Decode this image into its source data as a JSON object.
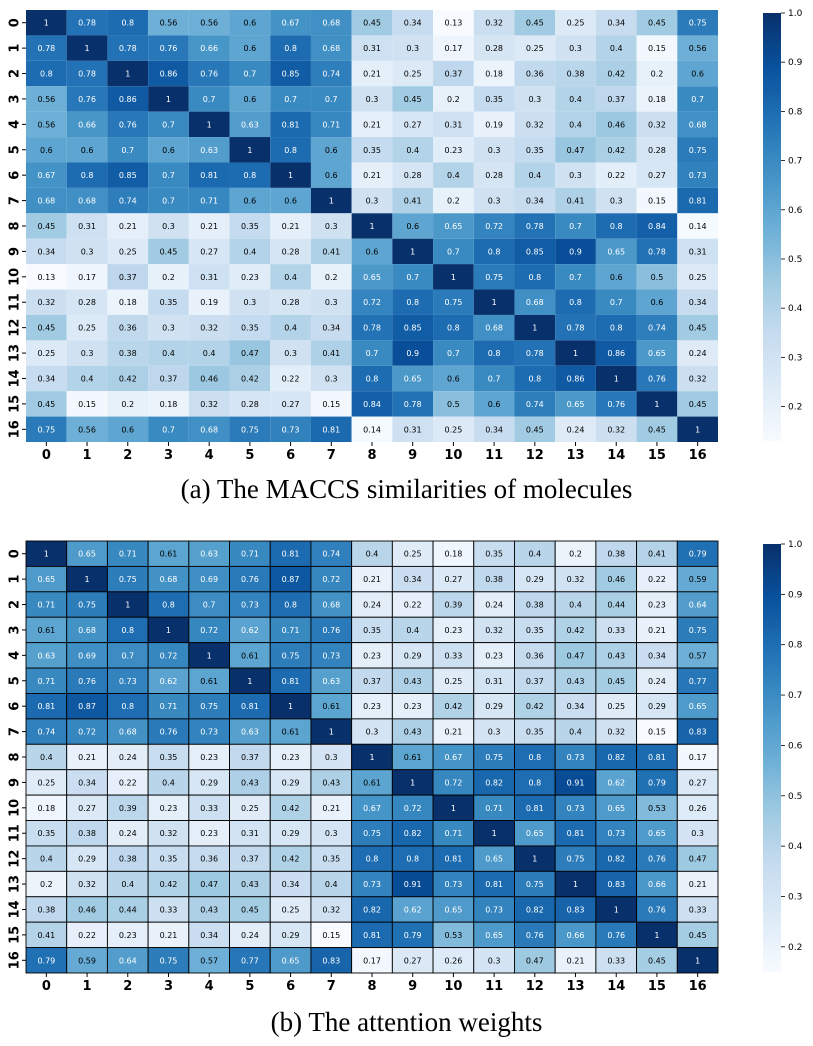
{
  "figure": {
    "caption_a": "(a) The MACCS similarities of molecules",
    "caption_b": "(b) The attention weights"
  },
  "colors": {
    "colormap_low": "#f7fbff",
    "colormap_high": "#08306b",
    "cell_text_dark": "#000000",
    "cell_text_light": "#ffffff",
    "gridline_b": "#000000"
  },
  "chart_data": [
    {
      "type": "heatmap",
      "title": "(a) The MACCS similarities of molecules",
      "row_labels": [
        "0",
        "1",
        "2",
        "3",
        "4",
        "5",
        "6",
        "7",
        "8",
        "9",
        "10",
        "11",
        "12",
        "13",
        "14",
        "15",
        "16"
      ],
      "col_labels": [
        "0",
        "1",
        "2",
        "3",
        "4",
        "5",
        "6",
        "7",
        "8",
        "9",
        "10",
        "11",
        "12",
        "13",
        "14",
        "15",
        "16"
      ],
      "colorbar": {
        "min": 0.13,
        "max": 1.0,
        "ticks": [
          "1.0",
          "0.9",
          "0.8",
          "0.7",
          "0.6",
          "0.5",
          "0.4",
          "0.3",
          "0.2"
        ],
        "tick_values": [
          1.0,
          0.9,
          0.8,
          0.7,
          0.6,
          0.5,
          0.4,
          0.3,
          0.2
        ]
      },
      "gridlines": false,
      "values": [
        [
          1,
          0.78,
          0.8,
          0.56,
          0.56,
          0.6,
          0.67,
          0.68,
          0.45,
          0.34,
          0.13,
          0.32,
          0.45,
          0.25,
          0.34,
          0.45,
          0.75
        ],
        [
          0.78,
          1,
          0.78,
          0.76,
          0.66,
          0.6,
          0.8,
          0.68,
          0.31,
          0.3,
          0.17,
          0.28,
          0.25,
          0.3,
          0.4,
          0.15,
          0.56
        ],
        [
          0.8,
          0.78,
          1,
          0.86,
          0.76,
          0.7,
          0.85,
          0.74,
          0.21,
          0.25,
          0.37,
          0.18,
          0.36,
          0.38,
          0.42,
          0.2,
          0.6
        ],
        [
          0.56,
          0.76,
          0.86,
          1,
          0.7,
          0.6,
          0.7,
          0.7,
          0.3,
          0.45,
          0.2,
          0.35,
          0.3,
          0.4,
          0.37,
          0.18,
          0.7
        ],
        [
          0.56,
          0.66,
          0.76,
          0.7,
          1,
          0.63,
          0.81,
          0.71,
          0.21,
          0.27,
          0.31,
          0.19,
          0.32,
          0.4,
          0.46,
          0.32,
          0.68
        ],
        [
          0.6,
          0.6,
          0.7,
          0.6,
          0.63,
          1,
          0.8,
          0.6,
          0.35,
          0.4,
          0.23,
          0.3,
          0.35,
          0.47,
          0.42,
          0.28,
          0.75
        ],
        [
          0.67,
          0.8,
          0.85,
          0.7,
          0.81,
          0.8,
          1,
          0.6,
          0.21,
          0.28,
          0.4,
          0.28,
          0.4,
          0.3,
          0.22,
          0.27,
          0.73
        ],
        [
          0.68,
          0.68,
          0.74,
          0.7,
          0.71,
          0.6,
          0.6,
          1,
          0.3,
          0.41,
          0.2,
          0.3,
          0.34,
          0.41,
          0.3,
          0.15,
          0.81
        ],
        [
          0.45,
          0.31,
          0.21,
          0.3,
          0.21,
          0.35,
          0.21,
          0.3,
          1,
          0.6,
          0.65,
          0.72,
          0.78,
          0.7,
          0.8,
          0.84,
          0.14
        ],
        [
          0.34,
          0.3,
          0.25,
          0.45,
          0.27,
          0.4,
          0.28,
          0.41,
          0.6,
          1,
          0.7,
          0.8,
          0.85,
          0.9,
          0.65,
          0.78,
          0.31
        ],
        [
          0.13,
          0.17,
          0.37,
          0.2,
          0.31,
          0.23,
          0.4,
          0.2,
          0.65,
          0.7,
          1,
          0.75,
          0.8,
          0.7,
          0.6,
          0.5,
          0.25
        ],
        [
          0.32,
          0.28,
          0.18,
          0.35,
          0.19,
          0.3,
          0.28,
          0.3,
          0.72,
          0.8,
          0.75,
          1,
          0.68,
          0.8,
          0.7,
          0.6,
          0.34
        ],
        [
          0.45,
          0.25,
          0.36,
          0.3,
          0.32,
          0.35,
          0.4,
          0.34,
          0.78,
          0.85,
          0.8,
          0.68,
          1,
          0.78,
          0.8,
          0.74,
          0.45
        ],
        [
          0.25,
          0.3,
          0.38,
          0.4,
          0.4,
          0.47,
          0.3,
          0.41,
          0.7,
          0.9,
          0.7,
          0.8,
          0.78,
          1,
          0.86,
          0.65,
          0.24
        ],
        [
          0.34,
          0.4,
          0.42,
          0.37,
          0.46,
          0.42,
          0.22,
          0.3,
          0.8,
          0.65,
          0.6,
          0.7,
          0.8,
          0.86,
          1,
          0.76,
          0.32
        ],
        [
          0.45,
          0.15,
          0.2,
          0.18,
          0.32,
          0.28,
          0.27,
          0.15,
          0.84,
          0.78,
          0.5,
          0.6,
          0.74,
          0.65,
          0.76,
          1,
          0.45
        ],
        [
          0.75,
          0.56,
          0.6,
          0.7,
          0.68,
          0.75,
          0.73,
          0.81,
          0.14,
          0.31,
          0.25,
          0.34,
          0.45,
          0.24,
          0.32,
          0.45,
          1
        ]
      ]
    },
    {
      "type": "heatmap",
      "title": "(b) The attention weights",
      "row_labels": [
        "0",
        "1",
        "2",
        "3",
        "4",
        "5",
        "6",
        "7",
        "8",
        "9",
        "10",
        "11",
        "12",
        "13",
        "14",
        "15",
        "16"
      ],
      "col_labels": [
        "0",
        "1",
        "2",
        "3",
        "4",
        "5",
        "6",
        "7",
        "8",
        "9",
        "10",
        "11",
        "12",
        "13",
        "14",
        "15",
        "16"
      ],
      "colorbar": {
        "min": 0.15,
        "max": 1.0,
        "ticks": [
          "1.0",
          "0.9",
          "0.8",
          "0.7",
          "0.6",
          "0.5",
          "0.4",
          "0.3",
          "0.2"
        ],
        "tick_values": [
          1.0,
          0.9,
          0.8,
          0.7,
          0.6,
          0.5,
          0.4,
          0.3,
          0.2
        ]
      },
      "gridlines": true,
      "values": [
        [
          1,
          0.65,
          0.71,
          0.61,
          0.63,
          0.71,
          0.81,
          0.74,
          0.4,
          0.25,
          0.18,
          0.35,
          0.4,
          0.2,
          0.38,
          0.41,
          0.79
        ],
        [
          0.65,
          1,
          0.75,
          0.68,
          0.69,
          0.76,
          0.87,
          0.72,
          0.21,
          0.34,
          0.27,
          0.38,
          0.29,
          0.32,
          0.46,
          0.22,
          0.59
        ],
        [
          0.71,
          0.75,
          1,
          0.8,
          0.7,
          0.73,
          0.8,
          0.68,
          0.24,
          0.22,
          0.39,
          0.24,
          0.38,
          0.4,
          0.44,
          0.23,
          0.64
        ],
        [
          0.61,
          0.68,
          0.8,
          1,
          0.72,
          0.62,
          0.71,
          0.76,
          0.35,
          0.4,
          0.23,
          0.32,
          0.35,
          0.42,
          0.33,
          0.21,
          0.75
        ],
        [
          0.63,
          0.69,
          0.7,
          0.72,
          1,
          0.61,
          0.75,
          0.73,
          0.23,
          0.29,
          0.33,
          0.23,
          0.36,
          0.47,
          0.43,
          0.34,
          0.57
        ],
        [
          0.71,
          0.76,
          0.73,
          0.62,
          0.61,
          1,
          0.81,
          0.63,
          0.37,
          0.43,
          0.25,
          0.31,
          0.37,
          0.43,
          0.45,
          0.24,
          0.77
        ],
        [
          0.81,
          0.87,
          0.8,
          0.71,
          0.75,
          0.81,
          1,
          0.61,
          0.23,
          0.23,
          0.42,
          0.29,
          0.42,
          0.34,
          0.25,
          0.29,
          0.65
        ],
        [
          0.74,
          0.72,
          0.68,
          0.76,
          0.73,
          0.63,
          0.61,
          1,
          0.3,
          0.43,
          0.21,
          0.3,
          0.35,
          0.4,
          0.32,
          0.15,
          0.83
        ],
        [
          0.4,
          0.21,
          0.24,
          0.35,
          0.23,
          0.37,
          0.23,
          0.3,
          1,
          0.61,
          0.67,
          0.75,
          0.8,
          0.73,
          0.82,
          0.81,
          0.17
        ],
        [
          0.25,
          0.34,
          0.22,
          0.4,
          0.29,
          0.43,
          0.29,
          0.43,
          0.61,
          1,
          0.72,
          0.82,
          0.8,
          0.91,
          0.62,
          0.79,
          0.27
        ],
        [
          0.18,
          0.27,
          0.39,
          0.23,
          0.33,
          0.25,
          0.42,
          0.21,
          0.67,
          0.72,
          1,
          0.71,
          0.81,
          0.73,
          0.65,
          0.53,
          0.26
        ],
        [
          0.35,
          0.38,
          0.24,
          0.32,
          0.23,
          0.31,
          0.29,
          0.3,
          0.75,
          0.82,
          0.71,
          1,
          0.65,
          0.81,
          0.73,
          0.65,
          0.3
        ],
        [
          0.4,
          0.29,
          0.38,
          0.35,
          0.36,
          0.37,
          0.42,
          0.35,
          0.8,
          0.8,
          0.81,
          0.65,
          1,
          0.75,
          0.82,
          0.76,
          0.47
        ],
        [
          0.2,
          0.32,
          0.4,
          0.42,
          0.47,
          0.43,
          0.34,
          0.4,
          0.73,
          0.91,
          0.73,
          0.81,
          0.75,
          1,
          0.83,
          0.66,
          0.21
        ],
        [
          0.38,
          0.46,
          0.44,
          0.33,
          0.43,
          0.45,
          0.25,
          0.32,
          0.82,
          0.62,
          0.65,
          0.73,
          0.82,
          0.83,
          1,
          0.76,
          0.33
        ],
        [
          0.41,
          0.22,
          0.23,
          0.21,
          0.34,
          0.24,
          0.29,
          0.15,
          0.81,
          0.79,
          0.53,
          0.65,
          0.76,
          0.66,
          0.76,
          1,
          0.45
        ],
        [
          0.79,
          0.59,
          0.64,
          0.75,
          0.57,
          0.77,
          0.65,
          0.83,
          0.17,
          0.27,
          0.26,
          0.3,
          0.47,
          0.21,
          0.33,
          0.45,
          1
        ]
      ]
    }
  ]
}
